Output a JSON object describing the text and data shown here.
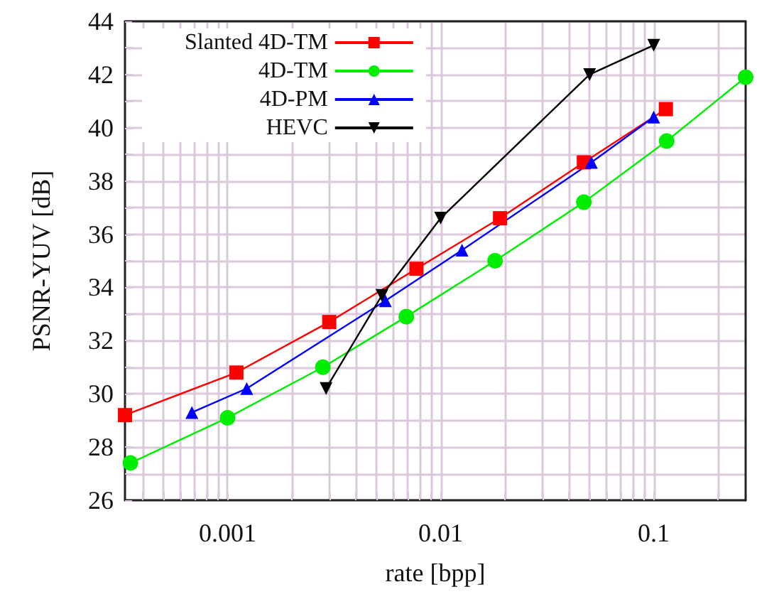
{
  "chart_data": {
    "type": "line",
    "xlabel": "rate [bpp]",
    "ylabel": "PSNR-YUV [dB]",
    "log": "x",
    "grid": true,
    "legend": "top left",
    "xlim": [
      0.00033,
      0.27
    ],
    "xticks": [
      0.001,
      0.01,
      0.1
    ],
    "ylim": [
      26,
      44
    ],
    "yticks": [
      26,
      28,
      30,
      32,
      34,
      36,
      38,
      40,
      42,
      44
    ],
    "series": [
      {
        "name": "Slanted 4D-TM",
        "color": "#ff0000",
        "marker": "square",
        "x": [
          0.00033,
          0.0011,
          0.003,
          0.0077,
          0.019,
          0.047,
          0.114
        ],
        "values": [
          29.2,
          30.8,
          32.7,
          34.7,
          36.6,
          38.7,
          40.7
        ]
      },
      {
        "name": "4D-TM",
        "color": "#00ee00",
        "marker": "circle",
        "x": [
          0.00035,
          0.001,
          0.0028,
          0.0069,
          0.018,
          0.047,
          0.115,
          0.27
        ],
        "values": [
          27.4,
          29.1,
          31.0,
          32.9,
          35.0,
          37.2,
          39.5,
          41.9
        ]
      },
      {
        "name": "4D-PM",
        "color": "#0000ff",
        "marker": "triangle",
        "x": [
          0.00068,
          0.00123,
          0.0055,
          0.0126,
          0.051,
          0.1
        ],
        "values": [
          29.3,
          30.2,
          33.5,
          35.4,
          38.7,
          40.4
        ]
      },
      {
        "name": "HEVC",
        "color": "#000000",
        "marker": "triangle-down",
        "x": [
          0.0029,
          0.0053,
          0.01,
          0.05,
          0.1
        ],
        "values": [
          30.2,
          33.7,
          36.6,
          42.0,
          43.1
        ]
      }
    ]
  }
}
